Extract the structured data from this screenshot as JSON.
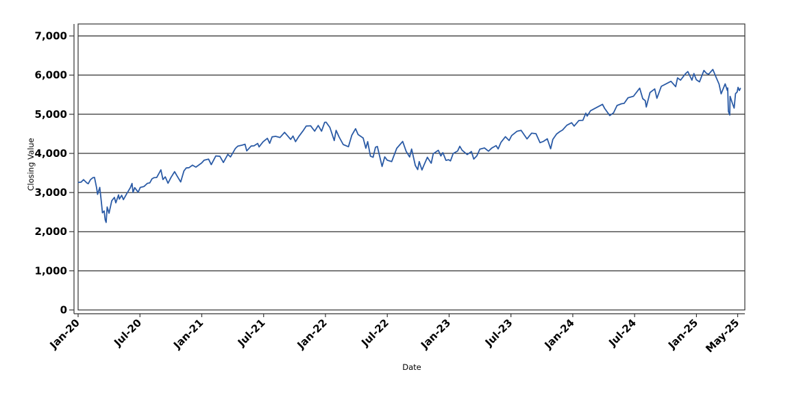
{
  "figure": {
    "background": "#ffffff",
    "plot_background": "#ffffff"
  },
  "chart_data": {
    "type": "line",
    "title": "",
    "xlabel": "Date",
    "ylabel": "Closing Value",
    "grid": "horizontal",
    "legend": "none",
    "colors": {
      "line": "#2a5aa5",
      "grid": "#000000",
      "axis": "#333333",
      "tick_text": "#000000"
    },
    "ylim": [
      0,
      7300
    ],
    "xlim_months_from_jan2020": [
      0,
      64.7
    ],
    "y_ticks": [
      {
        "value": 0,
        "label": "0"
      },
      {
        "value": 1000,
        "label": "1,000"
      },
      {
        "value": 2000,
        "label": "2,000"
      },
      {
        "value": 3000,
        "label": "3,000"
      },
      {
        "value": 4000,
        "label": "4,000"
      },
      {
        "value": 5000,
        "label": "5,000"
      },
      {
        "value": 6000,
        "label": "6,000"
      },
      {
        "value": 7000,
        "label": "7,000"
      }
    ],
    "x_ticks": [
      {
        "month": 0,
        "label": "Jan-20"
      },
      {
        "month": 6,
        "label": "Jul-20"
      },
      {
        "month": 12,
        "label": "Jan-21"
      },
      {
        "month": 18,
        "label": "Jul-21"
      },
      {
        "month": 24,
        "label": "Jan-22"
      },
      {
        "month": 30,
        "label": "Jul-22"
      },
      {
        "month": 36,
        "label": "Jan-23"
      },
      {
        "month": 42,
        "label": "Jul-23"
      },
      {
        "month": 48,
        "label": "Jan-24"
      },
      {
        "month": 54,
        "label": "Jul-24"
      },
      {
        "month": 60,
        "label": "Jan-25"
      },
      {
        "month": 64,
        "label": "May-25"
      }
    ],
    "series": [
      {
        "name": "Closing Value",
        "color": "#2a5aa5",
        "points": [
          [
            "2020-01-02",
            3258
          ],
          [
            "2020-01-10",
            3265
          ],
          [
            "2020-01-17",
            3330
          ],
          [
            "2020-01-27",
            3244
          ],
          [
            "2020-01-31",
            3226
          ],
          [
            "2020-02-07",
            3328
          ],
          [
            "2020-02-14",
            3380
          ],
          [
            "2020-02-19",
            3386
          ],
          [
            "2020-02-25",
            3128
          ],
          [
            "2020-02-28",
            2954
          ],
          [
            "2020-03-04",
            3130
          ],
          [
            "2020-03-09",
            2746
          ],
          [
            "2020-03-12",
            2481
          ],
          [
            "2020-03-17",
            2529
          ],
          [
            "2020-03-20",
            2305
          ],
          [
            "2020-03-23",
            2237
          ],
          [
            "2020-03-26",
            2630
          ],
          [
            "2020-04-01",
            2471
          ],
          [
            "2020-04-09",
            2790
          ],
          [
            "2020-04-17",
            2875
          ],
          [
            "2020-04-21",
            2737
          ],
          [
            "2020-04-29",
            2940
          ],
          [
            "2020-05-01",
            2831
          ],
          [
            "2020-05-08",
            2930
          ],
          [
            "2020-05-13",
            2820
          ],
          [
            "2020-05-22",
            2955
          ],
          [
            "2020-06-03",
            3123
          ],
          [
            "2020-06-08",
            3232
          ],
          [
            "2020-06-11",
            3002
          ],
          [
            "2020-06-16",
            3125
          ],
          [
            "2020-06-26",
            3009
          ],
          [
            "2020-07-02",
            3130
          ],
          [
            "2020-07-13",
            3155
          ],
          [
            "2020-07-23",
            3236
          ],
          [
            "2020-07-30",
            3246
          ],
          [
            "2020-08-06",
            3349
          ],
          [
            "2020-08-12",
            3380
          ],
          [
            "2020-08-20",
            3385
          ],
          [
            "2020-08-28",
            3508
          ],
          [
            "2020-09-02",
            3581
          ],
          [
            "2020-09-08",
            3332
          ],
          [
            "2020-09-15",
            3401
          ],
          [
            "2020-09-23",
            3237
          ],
          [
            "2020-10-01",
            3381
          ],
          [
            "2020-10-12",
            3534
          ],
          [
            "2020-10-19",
            3427
          ],
          [
            "2020-10-30",
            3270
          ],
          [
            "2020-11-09",
            3550
          ],
          [
            "2020-11-16",
            3627
          ],
          [
            "2020-11-24",
            3635
          ],
          [
            "2020-12-04",
            3699
          ],
          [
            "2020-12-14",
            3648
          ],
          [
            "2020-12-31",
            3756
          ],
          [
            "2021-01-08",
            3825
          ],
          [
            "2021-01-21",
            3853
          ],
          [
            "2021-01-29",
            3714
          ],
          [
            "2021-02-12",
            3935
          ],
          [
            "2021-02-24",
            3925
          ],
          [
            "2021-03-04",
            3768
          ],
          [
            "2021-03-17",
            3974
          ],
          [
            "2021-03-25",
            3910
          ],
          [
            "2021-04-09",
            4129
          ],
          [
            "2021-04-16",
            4185
          ],
          [
            "2021-04-29",
            4211
          ],
          [
            "2021-05-07",
            4233
          ],
          [
            "2021-05-12",
            4063
          ],
          [
            "2021-05-25",
            4188
          ],
          [
            "2021-06-03",
            4193
          ],
          [
            "2021-06-14",
            4255
          ],
          [
            "2021-06-18",
            4166
          ],
          [
            "2021-06-30",
            4298
          ],
          [
            "2021-07-12",
            4385
          ],
          [
            "2021-07-19",
            4258
          ],
          [
            "2021-07-26",
            4422
          ],
          [
            "2021-08-06",
            4437
          ],
          [
            "2021-08-19",
            4406
          ],
          [
            "2021-09-02",
            4537
          ],
          [
            "2021-09-10",
            4459
          ],
          [
            "2021-09-20",
            4358
          ],
          [
            "2021-09-27",
            4443
          ],
          [
            "2021-10-04",
            4300
          ],
          [
            "2021-10-14",
            4438
          ],
          [
            "2021-10-26",
            4575
          ],
          [
            "2021-11-05",
            4698
          ],
          [
            "2021-11-18",
            4705
          ],
          [
            "2021-11-30",
            4567
          ],
          [
            "2021-12-10",
            4712
          ],
          [
            "2021-12-20",
            4568
          ],
          [
            "2021-12-29",
            4793
          ],
          [
            "2022-01-03",
            4797
          ],
          [
            "2022-01-14",
            4663
          ],
          [
            "2022-01-27",
            4327
          ],
          [
            "2022-02-02",
            4589
          ],
          [
            "2022-02-11",
            4419
          ],
          [
            "2022-02-23",
            4226
          ],
          [
            "2022-03-08",
            4171
          ],
          [
            "2022-03-18",
            4463
          ],
          [
            "2022-03-29",
            4631
          ],
          [
            "2022-04-06",
            4481
          ],
          [
            "2022-04-21",
            4393
          ],
          [
            "2022-04-29",
            4132
          ],
          [
            "2022-05-04",
            4300
          ],
          [
            "2022-05-12",
            3930
          ],
          [
            "2022-05-20",
            3901
          ],
          [
            "2022-05-27",
            4158
          ],
          [
            "2022-06-02",
            4177
          ],
          [
            "2022-06-16",
            3667
          ],
          [
            "2022-06-24",
            3912
          ],
          [
            "2022-07-01",
            3825
          ],
          [
            "2022-07-14",
            3790
          ],
          [
            "2022-07-29",
            4130
          ],
          [
            "2022-08-16",
            4305
          ],
          [
            "2022-08-26",
            4058
          ],
          [
            "2022-09-06",
            3908
          ],
          [
            "2022-09-12",
            4110
          ],
          [
            "2022-09-23",
            3693
          ],
          [
            "2022-09-30",
            3586
          ],
          [
            "2022-10-04",
            3791
          ],
          [
            "2022-10-12",
            3577
          ],
          [
            "2022-10-17",
            3678
          ],
          [
            "2022-10-28",
            3901
          ],
          [
            "2022-11-09",
            3748
          ],
          [
            "2022-11-15",
            3992
          ],
          [
            "2022-11-30",
            4080
          ],
          [
            "2022-12-07",
            3934
          ],
          [
            "2022-12-13",
            4020
          ],
          [
            "2022-12-22",
            3822
          ],
          [
            "2022-12-30",
            3840
          ],
          [
            "2023-01-05",
            3808
          ],
          [
            "2023-01-13",
            3999
          ],
          [
            "2023-01-26",
            4060
          ],
          [
            "2023-02-02",
            4180
          ],
          [
            "2023-02-09",
            4081
          ],
          [
            "2023-02-24",
            3970
          ],
          [
            "2023-03-06",
            4048
          ],
          [
            "2023-03-13",
            3856
          ],
          [
            "2023-03-22",
            3937
          ],
          [
            "2023-03-31",
            4109
          ],
          [
            "2023-04-14",
            4138
          ],
          [
            "2023-04-26",
            4056
          ],
          [
            "2023-05-05",
            4136
          ],
          [
            "2023-05-18",
            4198
          ],
          [
            "2023-05-24",
            4115
          ],
          [
            "2023-06-02",
            4282
          ],
          [
            "2023-06-15",
            4426
          ],
          [
            "2023-06-26",
            4329
          ],
          [
            "2023-07-03",
            4456
          ],
          [
            "2023-07-19",
            4566
          ],
          [
            "2023-07-31",
            4589
          ],
          [
            "2023-08-10",
            4469
          ],
          [
            "2023-08-18",
            4370
          ],
          [
            "2023-09-01",
            4516
          ],
          [
            "2023-09-14",
            4505
          ],
          [
            "2023-09-26",
            4274
          ],
          [
            "2023-10-06",
            4309
          ],
          [
            "2023-10-17",
            4373
          ],
          [
            "2023-10-27",
            4117
          ],
          [
            "2023-11-03",
            4358
          ],
          [
            "2023-11-14",
            4496
          ],
          [
            "2023-11-24",
            4559
          ],
          [
            "2023-12-01",
            4595
          ],
          [
            "2023-12-14",
            4720
          ],
          [
            "2023-12-28",
            4783
          ],
          [
            "2024-01-05",
            4697
          ],
          [
            "2024-01-19",
            4840
          ],
          [
            "2024-01-31",
            4846
          ],
          [
            "2024-02-09",
            5027
          ],
          [
            "2024-02-13",
            4953
          ],
          [
            "2024-02-23",
            5089
          ],
          [
            "2024-03-07",
            5157
          ],
          [
            "2024-03-28",
            5254
          ],
          [
            "2024-04-04",
            5147
          ],
          [
            "2024-04-19",
            4967
          ],
          [
            "2024-04-30",
            5036
          ],
          [
            "2024-05-10",
            5223
          ],
          [
            "2024-05-23",
            5268
          ],
          [
            "2024-05-31",
            5278
          ],
          [
            "2024-06-12",
            5421
          ],
          [
            "2024-06-28",
            5460
          ],
          [
            "2024-07-16",
            5667
          ],
          [
            "2024-07-25",
            5399
          ],
          [
            "2024-08-02",
            5347
          ],
          [
            "2024-08-05",
            5186
          ],
          [
            "2024-08-16",
            5554
          ],
          [
            "2024-08-30",
            5648
          ],
          [
            "2024-09-06",
            5408
          ],
          [
            "2024-09-19",
            5714
          ],
          [
            "2024-09-30",
            5762
          ],
          [
            "2024-10-17",
            5841
          ],
          [
            "2024-10-31",
            5705
          ],
          [
            "2024-11-06",
            5929
          ],
          [
            "2024-11-15",
            5871
          ],
          [
            "2024-11-29",
            6032
          ],
          [
            "2024-12-06",
            6090
          ],
          [
            "2024-12-18",
            5872
          ],
          [
            "2024-12-24",
            6040
          ],
          [
            "2024-12-31",
            5882
          ],
          [
            "2025-01-10",
            5827
          ],
          [
            "2025-01-23",
            6119
          ],
          [
            "2025-01-31",
            6041
          ],
          [
            "2025-02-07",
            6026
          ],
          [
            "2025-02-19",
            6144
          ],
          [
            "2025-02-28",
            5955
          ],
          [
            "2025-03-07",
            5770
          ],
          [
            "2025-03-13",
            5521
          ],
          [
            "2025-03-25",
            5777
          ],
          [
            "2025-03-31",
            5612
          ],
          [
            "2025-04-02",
            5671
          ],
          [
            "2025-04-04",
            5074
          ],
          [
            "2025-04-08",
            4983
          ],
          [
            "2025-04-09",
            5457
          ],
          [
            "2025-04-16",
            5276
          ],
          [
            "2025-04-21",
            5158
          ],
          [
            "2025-04-25",
            5525
          ],
          [
            "2025-04-30",
            5569
          ],
          [
            "2025-05-02",
            5687
          ],
          [
            "2025-05-06",
            5607
          ],
          [
            "2025-05-09",
            5660
          ]
        ]
      }
    ]
  }
}
